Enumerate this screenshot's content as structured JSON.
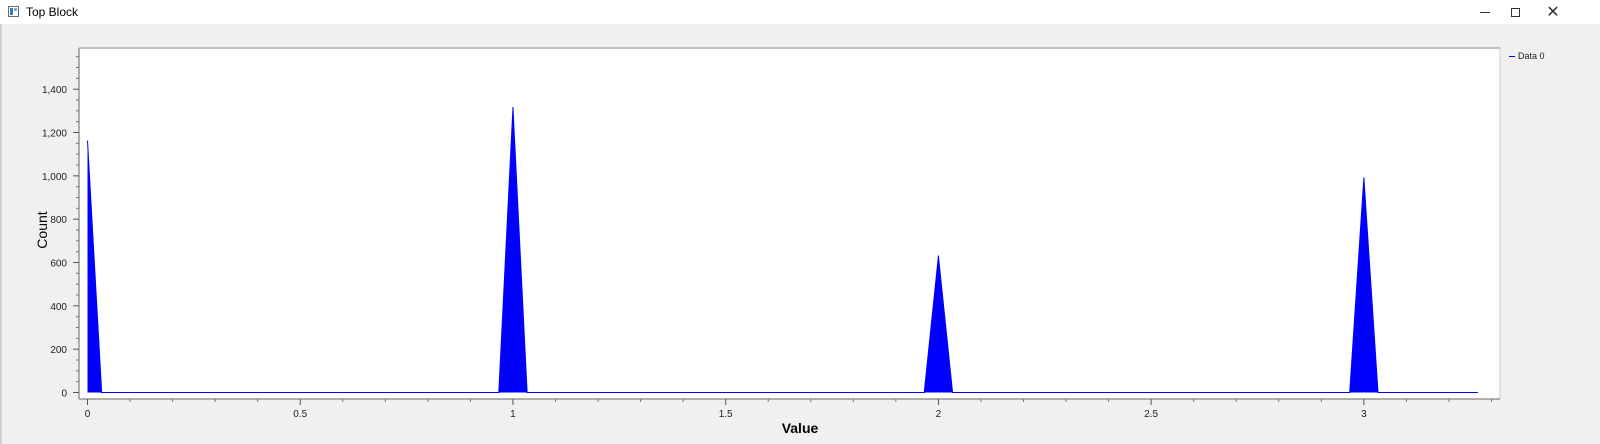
{
  "window": {
    "title": "Top Block"
  },
  "colors": {
    "series": "#0000ff",
    "background": "#ffffff",
    "frame": "#f0f0f0"
  },
  "chart_data": {
    "type": "area",
    "title": "",
    "xlabel": "Value",
    "ylabel": "Count",
    "xlim": [
      -0.02,
      3.32
    ],
    "ylim": [
      -30,
      1590
    ],
    "xticks": [
      0,
      0.5,
      1,
      1.5,
      2,
      2.5,
      3
    ],
    "xtick_labels": [
      "0",
      "0.5",
      "1",
      "1.5",
      "2",
      "2.5",
      "3"
    ],
    "yticks": [
      0,
      200,
      400,
      600,
      800,
      1000,
      1200,
      1400
    ],
    "ytick_labels": [
      "0",
      "200",
      "400",
      "600",
      "800",
      "1,000",
      "1,200",
      "1,400"
    ],
    "legend_position": "right",
    "grid": false,
    "series": [
      {
        "name": "Data 0",
        "color": "#0000ff",
        "x": [
          0,
          0.0333,
          0.9667,
          1,
          1.0333,
          1.9667,
          2,
          2.0333,
          2.9667,
          3,
          3.0333,
          3.2667
        ],
        "y": [
          1160,
          0,
          0,
          1315,
          0,
          0,
          630,
          0,
          0,
          990,
          0,
          0
        ]
      }
    ]
  }
}
